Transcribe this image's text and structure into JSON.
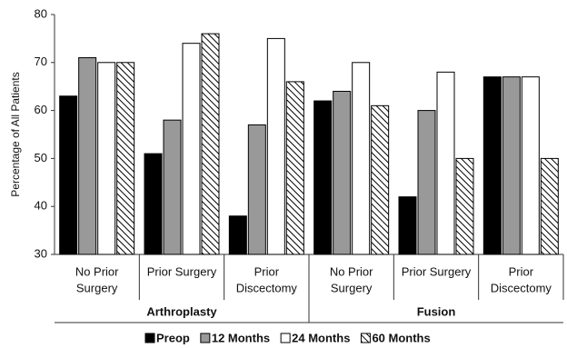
{
  "chart_data": {
    "type": "bar",
    "y_label": "Percentage of All Patients",
    "categories": [
      [
        "No Prior",
        "Surgery"
      ],
      [
        "Prior Surgery"
      ],
      [
        "Prior",
        "Discectomy"
      ],
      [
        "No Prior",
        "Surgery"
      ],
      [
        "Prior Surgery"
      ],
      [
        "Prior",
        "Discectomy"
      ]
    ],
    "group_labels": [
      "Arthroplasty",
      "Fusion"
    ],
    "series": [
      {
        "name": "Preop",
        "color": "#000000",
        "values": [
          63,
          51,
          38,
          62,
          42,
          67
        ]
      },
      {
        "name": "12 Months",
        "color": "#999999",
        "values": [
          71,
          58,
          57,
          64,
          60,
          67
        ]
      },
      {
        "name": "24 Months",
        "color": "#ffffff",
        "values": [
          70,
          74,
          75,
          70,
          68,
          67
        ]
      },
      {
        "name": "60 Months",
        "color": "#ffffff",
        "pattern": "hatch",
        "values": [
          70,
          76,
          66,
          61,
          50,
          50
        ]
      }
    ],
    "ylim": [
      30,
      80
    ],
    "yticks": [
      30,
      40,
      50,
      60,
      70,
      80
    ],
    "grid": false
  }
}
